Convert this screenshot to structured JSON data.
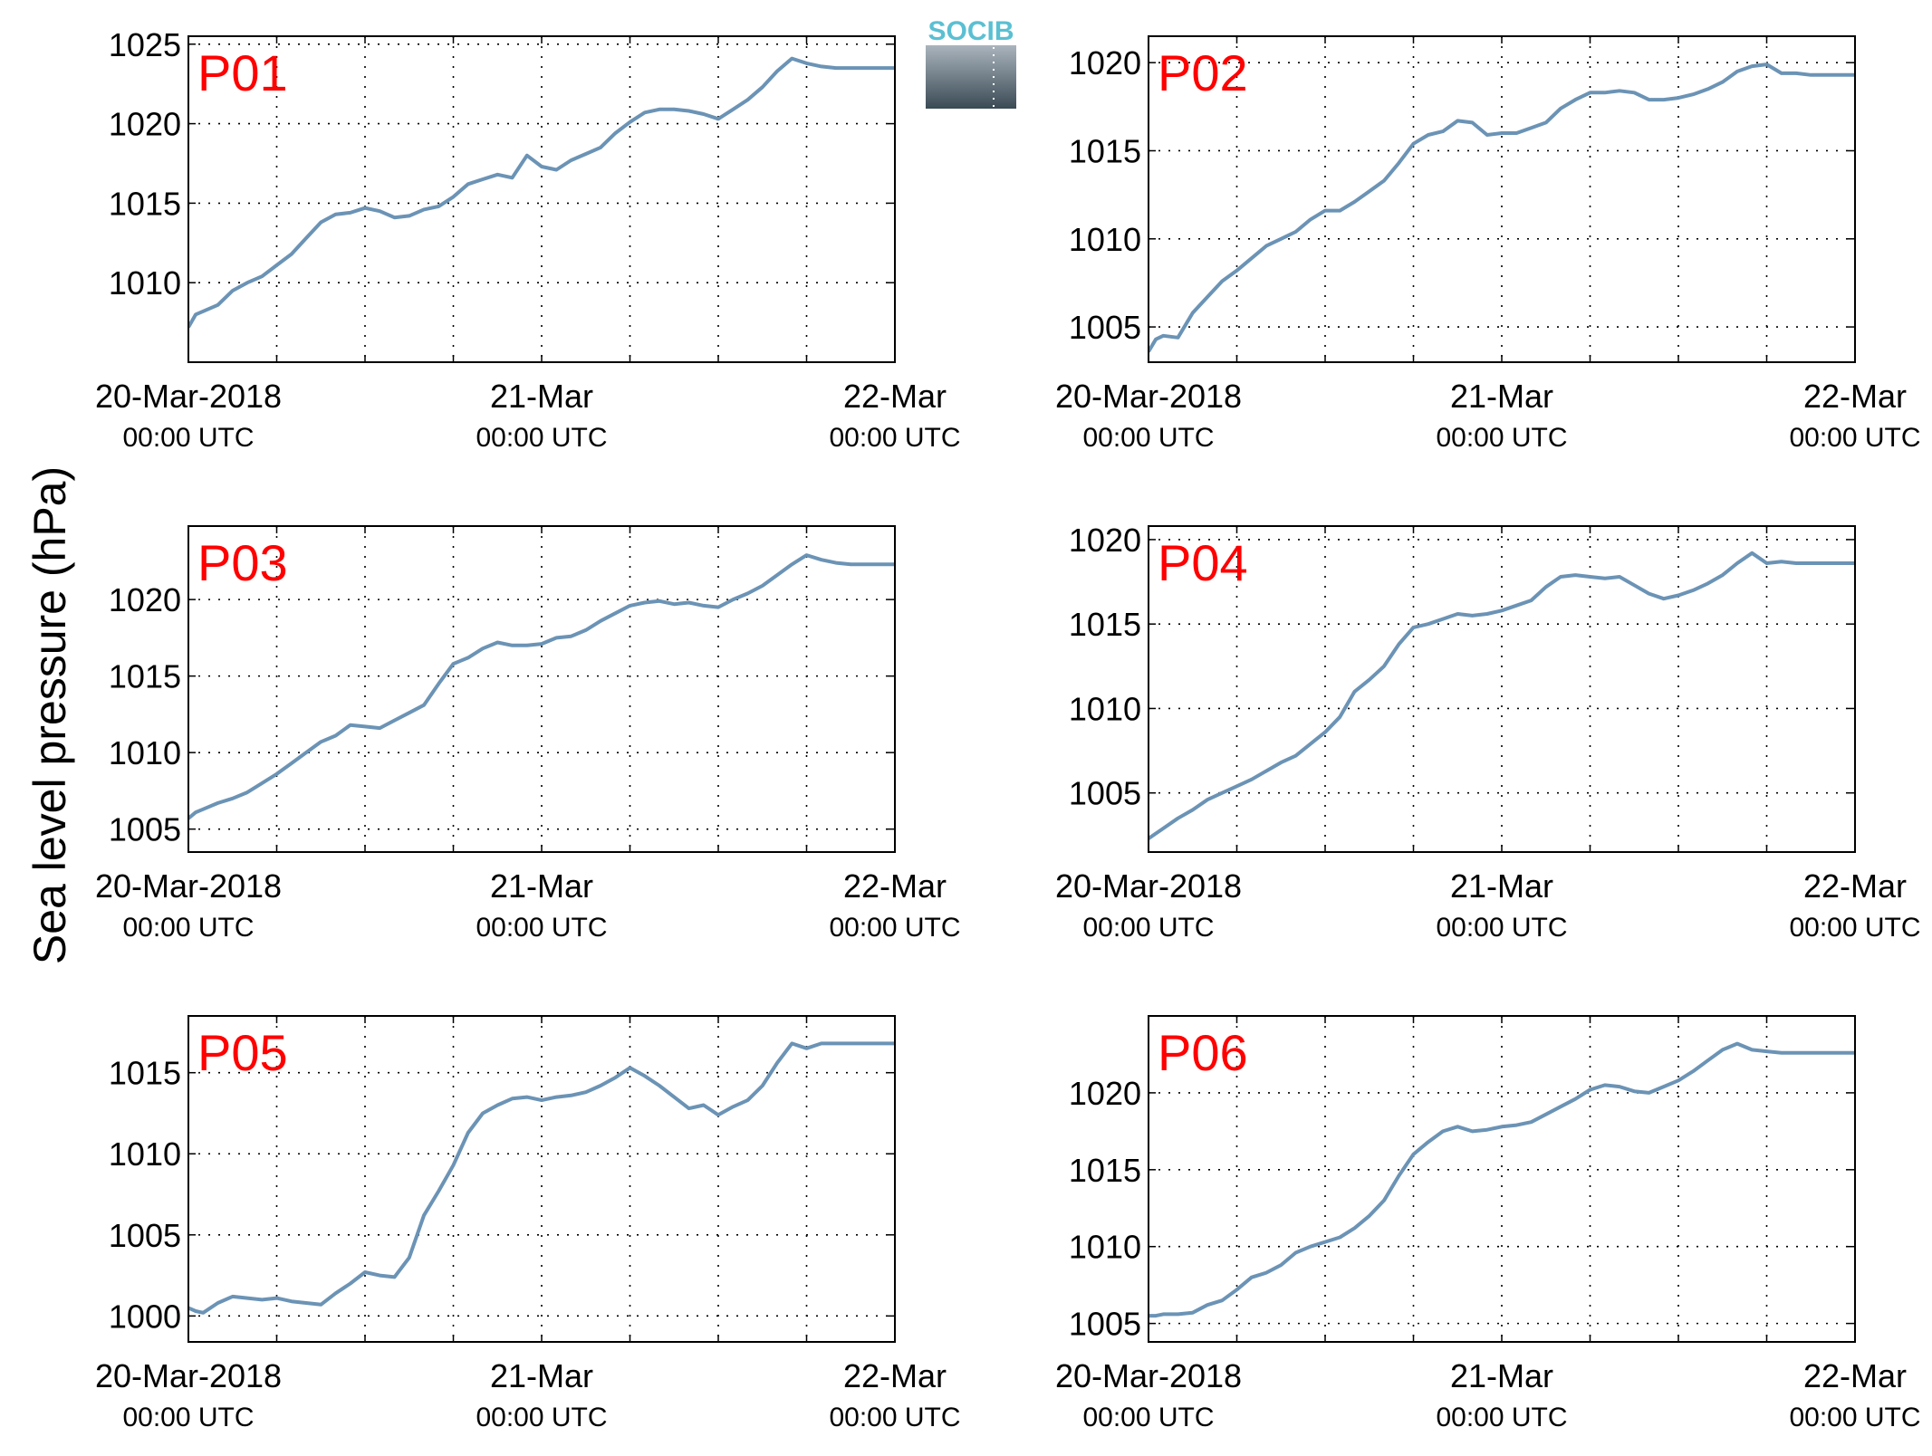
{
  "figure": {
    "ylabel": "Sea level pressure (hPa)",
    "logo_text": "SOCIB",
    "line_color": "#6b93b5",
    "label_color": "#ff0000"
  },
  "chart_data": [
    {
      "type": "line",
      "panel_label": "P01",
      "x_range": [
        "2018-03-20 00:00",
        "2018-03-22 00:00"
      ],
      "x_ticks": [
        {
          "date": "20-Mar-2018",
          "time": "00:00 UTC"
        },
        {
          "date": "21-Mar",
          "time": "00:00 UTC"
        },
        {
          "date": "22-Mar",
          "time": "00:00 UTC"
        }
      ],
      "ylim": [
        1005,
        1025.5
      ],
      "yticks": [
        1010,
        1015,
        1020,
        1025
      ],
      "grid": true,
      "series": [
        {
          "x_hours": [
            0,
            0.5,
            1,
            2,
            3,
            4,
            5,
            6,
            7,
            8,
            9,
            10,
            11,
            12,
            13,
            14,
            15,
            16,
            17,
            18,
            19,
            20,
            21,
            22,
            23,
            24,
            25,
            26,
            27,
            28,
            29,
            30,
            31,
            32,
            33,
            34,
            35,
            36,
            37,
            38,
            39,
            40,
            41,
            42,
            43,
            44,
            45,
            46,
            47,
            48
          ],
          "values": [
            1007.2,
            1008.0,
            1008.2,
            1008.6,
            1009.5,
            1010.0,
            1010.4,
            1011.1,
            1011.8,
            1012.8,
            1013.8,
            1014.3,
            1014.4,
            1014.7,
            1014.5,
            1014.1,
            1014.2,
            1014.6,
            1014.8,
            1015.4,
            1016.2,
            1016.5,
            1016.8,
            1016.6,
            1018.0,
            1017.3,
            1017.1,
            1017.7,
            1018.1,
            1018.5,
            1019.4,
            1020.1,
            1020.7,
            1020.9,
            1020.9,
            1020.8,
            1020.6,
            1020.3,
            1020.9,
            1021.5,
            1022.3,
            1023.3,
            1024.1,
            1023.8,
            1023.6,
            1023.5,
            1023.5,
            1023.5,
            1023.5,
            1023.5
          ]
        }
      ]
    },
    {
      "type": "line",
      "panel_label": "P02",
      "x_range": [
        "2018-03-20 00:00",
        "2018-03-22 00:00"
      ],
      "x_ticks": [
        {
          "date": "20-Mar-2018",
          "time": "00:00 UTC"
        },
        {
          "date": "21-Mar",
          "time": "00:00 UTC"
        },
        {
          "date": "22-Mar",
          "time": "00:00 UTC"
        }
      ],
      "ylim": [
        1003,
        1021.5
      ],
      "yticks": [
        1005,
        1010,
        1015,
        1020
      ],
      "grid": true,
      "series": [
        {
          "x_hours": [
            0,
            0.5,
            1,
            2,
            3,
            4,
            5,
            6,
            7,
            8,
            9,
            10,
            11,
            12,
            13,
            14,
            15,
            16,
            17,
            18,
            19,
            20,
            21,
            22,
            23,
            24,
            25,
            26,
            27,
            28,
            29,
            30,
            31,
            32,
            33,
            34,
            35,
            36,
            37,
            38,
            39,
            40,
            41,
            42,
            43,
            44,
            45,
            46,
            47,
            48
          ],
          "values": [
            1003.6,
            1004.3,
            1004.5,
            1004.4,
            1005.8,
            1006.7,
            1007.6,
            1008.2,
            1008.9,
            1009.6,
            1010.0,
            1010.4,
            1011.1,
            1011.6,
            1011.6,
            1012.1,
            1012.7,
            1013.3,
            1014.3,
            1015.4,
            1015.9,
            1016.1,
            1016.7,
            1016.6,
            1015.9,
            1016.0,
            1016.0,
            1016.3,
            1016.6,
            1017.4,
            1017.9,
            1018.3,
            1018.3,
            1018.4,
            1018.3,
            1017.9,
            1017.9,
            1018.0,
            1018.2,
            1018.5,
            1018.9,
            1019.5,
            1019.8,
            1019.9,
            1019.4,
            1019.4,
            1019.3,
            1019.3,
            1019.3,
            1019.3
          ]
        }
      ]
    },
    {
      "type": "line",
      "panel_label": "P03",
      "x_range": [
        "2018-03-20 00:00",
        "2018-03-22 00:00"
      ],
      "x_ticks": [
        {
          "date": "20-Mar-2018",
          "time": "00:00 UTC"
        },
        {
          "date": "21-Mar",
          "time": "00:00 UTC"
        },
        {
          "date": "22-Mar",
          "time": "00:00 UTC"
        }
      ],
      "ylim": [
        1003.5,
        1024.8
      ],
      "yticks": [
        1005,
        1010,
        1015,
        1020
      ],
      "grid": true,
      "series": [
        {
          "x_hours": [
            0,
            0.5,
            1,
            2,
            3,
            4,
            5,
            6,
            7,
            8,
            9,
            10,
            11,
            12,
            13,
            14,
            15,
            16,
            17,
            18,
            19,
            20,
            21,
            22,
            23,
            24,
            25,
            26,
            27,
            28,
            29,
            30,
            31,
            32,
            33,
            34,
            35,
            36,
            37,
            38,
            39,
            40,
            41,
            42,
            43,
            44,
            45,
            46,
            47,
            48
          ],
          "values": [
            1005.7,
            1006.1,
            1006.3,
            1006.7,
            1007.0,
            1007.4,
            1008.0,
            1008.6,
            1009.3,
            1010.0,
            1010.7,
            1011.1,
            1011.8,
            1011.7,
            1011.6,
            1012.1,
            1012.6,
            1013.1,
            1014.5,
            1015.8,
            1016.2,
            1016.8,
            1017.2,
            1017.0,
            1017.0,
            1017.1,
            1017.5,
            1017.6,
            1018.0,
            1018.6,
            1019.1,
            1019.6,
            1019.8,
            1019.9,
            1019.7,
            1019.8,
            1019.6,
            1019.5,
            1020.0,
            1020.4,
            1020.9,
            1021.6,
            1022.3,
            1022.9,
            1022.6,
            1022.4,
            1022.3,
            1022.3,
            1022.3,
            1022.3
          ]
        }
      ]
    },
    {
      "type": "line",
      "panel_label": "P04",
      "x_range": [
        "2018-03-20 00:00",
        "2018-03-22 00:00"
      ],
      "x_ticks": [
        {
          "date": "20-Mar-2018",
          "time": "00:00 UTC"
        },
        {
          "date": "21-Mar",
          "time": "00:00 UTC"
        },
        {
          "date": "22-Mar",
          "time": "00:00 UTC"
        }
      ],
      "ylim": [
        1001.5,
        1020.8
      ],
      "yticks": [
        1005,
        1010,
        1015,
        1020
      ],
      "grid": true,
      "series": [
        {
          "x_hours": [
            0,
            0.5,
            1,
            2,
            3,
            4,
            5,
            6,
            7,
            8,
            9,
            10,
            11,
            12,
            13,
            14,
            15,
            16,
            17,
            18,
            19,
            20,
            21,
            22,
            23,
            24,
            25,
            26,
            27,
            28,
            29,
            30,
            31,
            32,
            33,
            34,
            35,
            36,
            37,
            38,
            39,
            40,
            41,
            42,
            43,
            44,
            45,
            46,
            47,
            48
          ],
          "values": [
            1002.3,
            1002.6,
            1002.9,
            1003.5,
            1004.0,
            1004.6,
            1005.0,
            1005.4,
            1005.8,
            1006.3,
            1006.8,
            1007.2,
            1007.9,
            1008.6,
            1009.5,
            1011.0,
            1011.7,
            1012.5,
            1013.8,
            1014.8,
            1015.0,
            1015.3,
            1015.6,
            1015.5,
            1015.6,
            1015.8,
            1016.1,
            1016.4,
            1017.2,
            1017.8,
            1017.9,
            1017.8,
            1017.7,
            1017.8,
            1017.3,
            1016.8,
            1016.5,
            1016.7,
            1017.0,
            1017.4,
            1017.9,
            1018.6,
            1019.2,
            1018.6,
            1018.7,
            1018.6,
            1018.6,
            1018.6,
            1018.6,
            1018.6
          ]
        }
      ]
    },
    {
      "type": "line",
      "panel_label": "P05",
      "x_range": [
        "2018-03-20 00:00",
        "2018-03-22 00:00"
      ],
      "x_ticks": [
        {
          "date": "20-Mar-2018",
          "time": "00:00 UTC"
        },
        {
          "date": "21-Mar",
          "time": "00:00 UTC"
        },
        {
          "date": "22-Mar",
          "time": "00:00 UTC"
        }
      ],
      "ylim": [
        998.4,
        1018.5
      ],
      "yticks": [
        1000,
        1005,
        1010,
        1015
      ],
      "grid": true,
      "series": [
        {
          "x_hours": [
            0,
            0.5,
            1,
            2,
            3,
            4,
            5,
            6,
            7,
            8,
            9,
            10,
            11,
            12,
            13,
            14,
            15,
            16,
            17,
            18,
            19,
            20,
            21,
            22,
            23,
            24,
            25,
            26,
            27,
            28,
            29,
            30,
            31,
            32,
            33,
            34,
            35,
            36,
            37,
            38,
            39,
            40,
            41,
            42,
            43,
            44,
            45,
            46,
            47,
            48
          ],
          "values": [
            1000.5,
            1000.3,
            1000.2,
            1000.8,
            1001.2,
            1001.1,
            1001.0,
            1001.1,
            1000.9,
            1000.8,
            1000.7,
            1001.4,
            1002.0,
            1002.7,
            1002.5,
            1002.4,
            1003.6,
            1006.2,
            1007.7,
            1009.3,
            1011.3,
            1012.5,
            1013.0,
            1013.4,
            1013.5,
            1013.3,
            1013.5,
            1013.6,
            1013.8,
            1014.2,
            1014.7,
            1015.3,
            1014.8,
            1014.2,
            1013.5,
            1012.8,
            1013.0,
            1012.4,
            1012.9,
            1013.3,
            1014.2,
            1015.6,
            1016.8,
            1016.5,
            1016.8,
            1016.8,
            1016.8,
            1016.8,
            1016.8,
            1016.8
          ]
        }
      ]
    },
    {
      "type": "line",
      "panel_label": "P06",
      "x_range": [
        "2018-03-20 00:00",
        "2018-03-22 00:00"
      ],
      "x_ticks": [
        {
          "date": "20-Mar-2018",
          "time": "00:00 UTC"
        },
        {
          "date": "21-Mar",
          "time": "00:00 UTC"
        },
        {
          "date": "22-Mar",
          "time": "00:00 UTC"
        }
      ],
      "ylim": [
        1003.8,
        1025
      ],
      "yticks": [
        1005,
        1010,
        1015,
        1020
      ],
      "grid": true,
      "series": [
        {
          "x_hours": [
            0,
            0.5,
            1,
            2,
            3,
            4,
            5,
            6,
            7,
            8,
            9,
            10,
            11,
            12,
            13,
            14,
            15,
            16,
            17,
            18,
            19,
            20,
            21,
            22,
            23,
            24,
            25,
            26,
            27,
            28,
            29,
            30,
            31,
            32,
            33,
            34,
            35,
            36,
            37,
            38,
            39,
            40,
            41,
            42,
            43,
            44,
            45,
            46,
            47,
            48
          ],
          "values": [
            1005.5,
            1005.5,
            1005.6,
            1005.6,
            1005.7,
            1006.2,
            1006.5,
            1007.2,
            1008.0,
            1008.3,
            1008.8,
            1009.6,
            1010.0,
            1010.3,
            1010.6,
            1011.2,
            1012.0,
            1013.0,
            1014.6,
            1016.0,
            1016.8,
            1017.5,
            1017.8,
            1017.5,
            1017.6,
            1017.8,
            1017.9,
            1018.1,
            1018.6,
            1019.1,
            1019.6,
            1020.2,
            1020.5,
            1020.4,
            1020.1,
            1020.0,
            1020.4,
            1020.8,
            1021.4,
            1022.1,
            1022.8,
            1023.2,
            1022.8,
            1022.7,
            1022.6,
            1022.6,
            1022.6,
            1022.6,
            1022.6,
            1022.6
          ]
        }
      ]
    }
  ]
}
